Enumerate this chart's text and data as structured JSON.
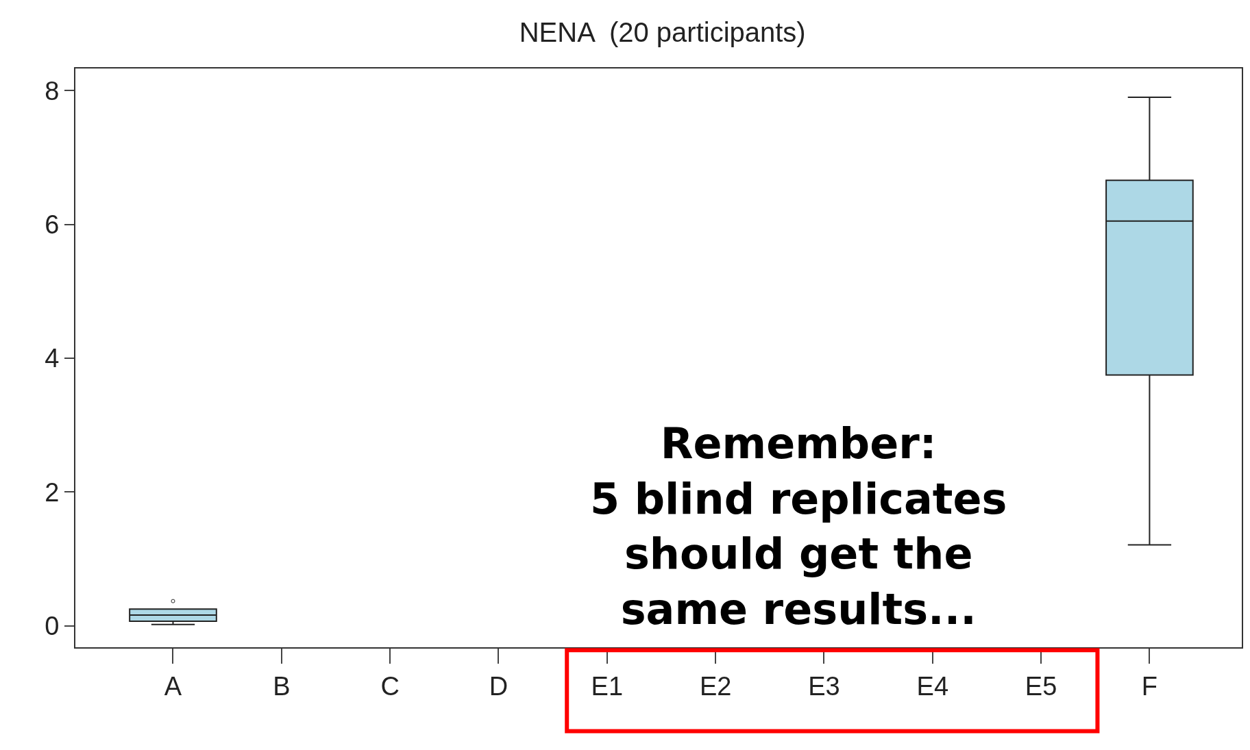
{
  "chart_data": {
    "type": "box",
    "title": "NENA  (20 participants)",
    "categories": [
      "A",
      "B",
      "C",
      "D",
      "E1",
      "E2",
      "E3",
      "E4",
      "E5",
      "F"
    ],
    "series": [
      {
        "color": "#add8e6",
        "boxes": [
          {
            "low": 0.02,
            "q1": 0.07,
            "median": 0.16,
            "q3": 0.25,
            "high": 0.25,
            "outliers": [
              0.37
            ]
          },
          null,
          null,
          null,
          null,
          null,
          null,
          null,
          null,
          {
            "low": 1.21,
            "q1": 3.75,
            "median": 6.05,
            "q3": 6.66,
            "high": 7.9
          }
        ]
      }
    ],
    "ylim": [
      -0.32,
      8.33
    ],
    "yticks": [
      0,
      2,
      4,
      6,
      8
    ],
    "annotations": [
      "Remember:\n5 blind replicates\nshould get the\nsame results..."
    ]
  }
}
